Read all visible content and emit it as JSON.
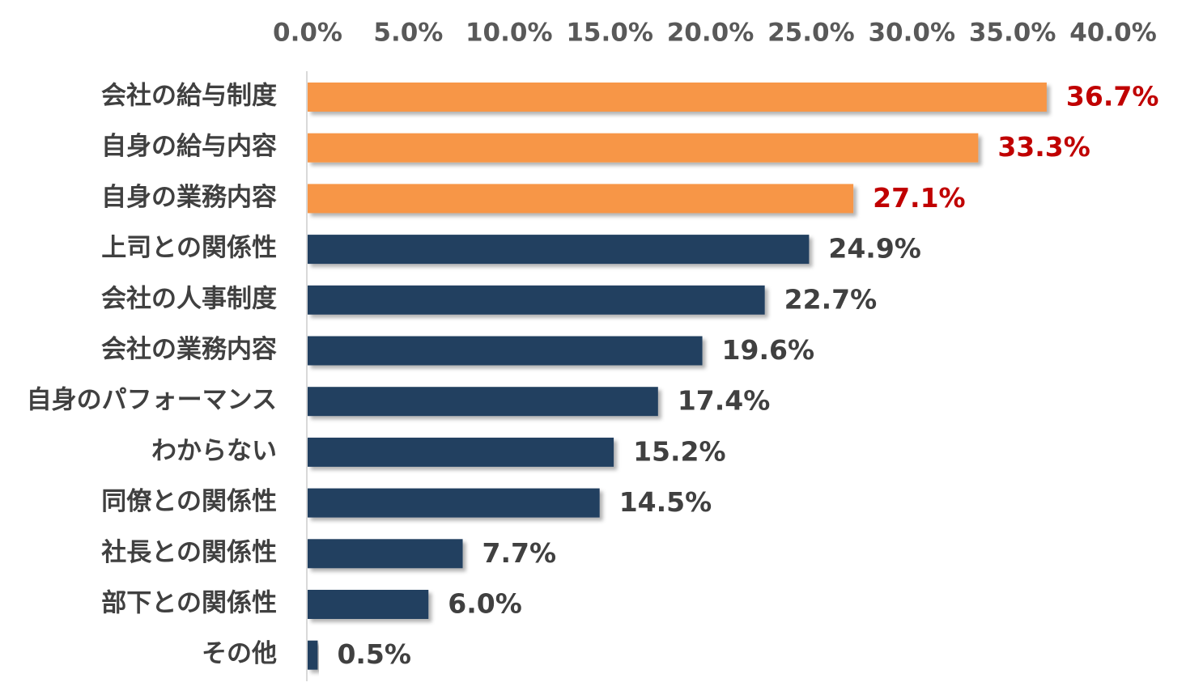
{
  "chart_data": {
    "type": "bar",
    "orientation": "horizontal",
    "title": "",
    "xlabel": "",
    "ylabel": "",
    "xlim": [
      0,
      40
    ],
    "tick_labels": [
      "0.0%",
      "5.0%",
      "10.0%",
      "15.0%",
      "20.0%",
      "25.0%",
      "30.0%",
      "35.0%",
      "40.0%"
    ],
    "x_axis_position": "top",
    "grid": false,
    "legend": "none",
    "categories": [
      "会社の給与制度",
      "自身の給与内容",
      "自身の業務内容",
      "上司との関係性",
      "会社の人事制度",
      "会社の業務内容",
      "自身のパフォーマンス",
      "わからない",
      "同僚との関係性",
      "社長との関係性",
      "部下との関係性",
      "その他"
    ],
    "values": [
      36.7,
      33.3,
      27.1,
      24.9,
      22.7,
      19.6,
      17.4,
      15.2,
      14.5,
      7.7,
      6.0,
      0.5
    ],
    "value_labels": [
      "36.7%",
      "33.3%",
      "27.1%",
      "24.9%",
      "22.7%",
      "19.6%",
      "17.4%",
      "15.2%",
      "14.5%",
      "7.7%",
      "6.0%",
      "0.5%"
    ],
    "highlight_count": 3,
    "colors": {
      "highlight_bar": "#F79646",
      "default_bar": "#243F60",
      "highlight_label": "#C00000",
      "default_label": "#404040",
      "axis_line": "#D9D9D9",
      "tick_text": "#595959",
      "category_text": "#404040"
    }
  }
}
